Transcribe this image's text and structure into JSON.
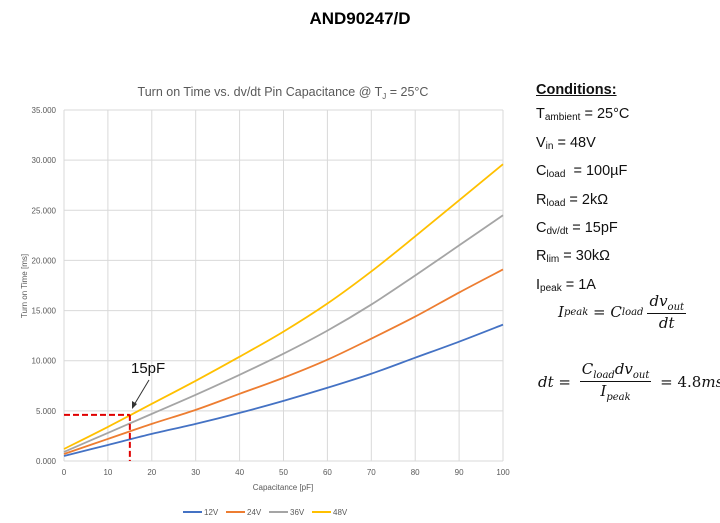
{
  "document_title": "AND90247/D",
  "chart_data": {
    "type": "line",
    "title": "Turn on Time vs. dv/dt Pin Capacitance @ T",
    "title_subscript": "J",
    "title_suffix": " = 25°C",
    "xlabel": "Capacitance [pF]",
    "ylabel": "Turn on Time [ms]",
    "xlim": [
      0,
      100
    ],
    "ylim": [
      0,
      35
    ],
    "x_ticks": [
      "0",
      "10",
      "20",
      "30",
      "40",
      "50",
      "60",
      "70",
      "80",
      "90",
      "100"
    ],
    "y_ticks": [
      "0.000",
      "5.000",
      "10.000",
      "15.000",
      "20.000",
      "25.000",
      "30.000",
      "35.000"
    ],
    "grid": true,
    "legend_position": "bottom",
    "x": [
      0,
      10,
      20,
      30,
      40,
      50,
      60,
      70,
      80,
      90,
      100
    ],
    "series": [
      {
        "name": "12V",
        "color": "#4472c4",
        "values": [
          0.5,
          1.6,
          2.7,
          3.7,
          4.8,
          6.0,
          7.3,
          8.7,
          10.3,
          11.9,
          13.6
        ]
      },
      {
        "name": "24V",
        "color": "#ed7d31",
        "values": [
          0.7,
          2.2,
          3.7,
          5.1,
          6.7,
          8.3,
          10.1,
          12.2,
          14.4,
          16.8,
          19.1
        ]
      },
      {
        "name": "36V",
        "color": "#a5a5a5",
        "values": [
          0.9,
          2.8,
          4.7,
          6.6,
          8.6,
          10.7,
          13.0,
          15.6,
          18.5,
          21.5,
          24.5
        ]
      },
      {
        "name": "48V",
        "color": "#ffc000",
        "values": [
          1.2,
          3.4,
          5.7,
          8.0,
          10.4,
          12.9,
          15.7,
          18.9,
          22.4,
          26.0,
          29.6
        ]
      }
    ],
    "annotation": {
      "label": "15pF",
      "x": 15,
      "y": 4.6,
      "color": "#e00000"
    }
  },
  "conditions": {
    "heading": "Conditions:",
    "items": [
      {
        "sym": "T",
        "sub": "ambient",
        "val": " = 25°C"
      },
      {
        "sym": "V",
        "sub": "in",
        "val": " = 48V"
      },
      {
        "sym": "C",
        "sub": "load",
        "val": "  = 100µF"
      },
      {
        "sym": "R",
        "sub": "load",
        "val": " = 2kΩ"
      },
      {
        "sym": "C",
        "sub": "dv/dt",
        "val": " = 15pF"
      },
      {
        "sym": "R",
        "sub": "lim",
        "val": " = 30kΩ"
      },
      {
        "sym": "I",
        "sub": "peak",
        "val": " = 1A"
      }
    ]
  },
  "equations": {
    "eq1": {
      "lhs": "I",
      "lhs_sub": "peak",
      "eq": " = ",
      "c": "C",
      "c_sub": "load",
      "num": "dv",
      "num_sub": "out",
      "den": "dt"
    },
    "eq2": {
      "lhs": "dt",
      "eq": " = ",
      "num_c": "C",
      "num_c_sub": "load",
      "num_dv": "dv",
      "num_dv_sub": "out",
      "den": "I",
      "den_sub": "peak",
      "result": " = 4.8",
      "unit": "ms"
    }
  }
}
